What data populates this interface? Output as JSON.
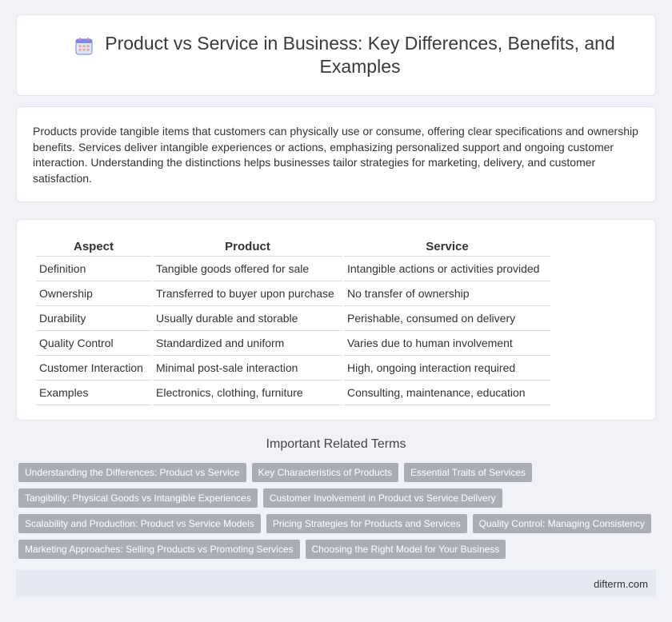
{
  "header": {
    "title": "Product vs Service in Business: Key Differences, Benefits, and Examples",
    "icon": "calendar-icon"
  },
  "intro": {
    "text": "Products provide tangible items that customers can physically use or consume, offering clear specifications and ownership benefits. Services deliver intangible experiences or actions, emphasizing personalized support and ongoing customer interaction. Understanding the distinctions helps businesses tailor strategies for marketing, delivery, and customer satisfaction."
  },
  "table": {
    "headers": [
      "Aspect",
      "Product",
      "Service"
    ],
    "rows": [
      [
        "Definition",
        "Tangible goods offered for sale",
        "Intangible actions or activities provided"
      ],
      [
        "Ownership",
        "Transferred to buyer upon purchase",
        "No transfer of ownership"
      ],
      [
        "Durability",
        "Usually durable and storable",
        "Perishable, consumed on delivery"
      ],
      [
        "Quality Control",
        "Standardized and uniform",
        "Varies due to human involvement"
      ],
      [
        "Customer Interaction",
        "Minimal post-sale interaction",
        "High, ongoing interaction required"
      ],
      [
        "Examples",
        "Electronics, clothing, furniture",
        "Consulting, maintenance, education"
      ]
    ]
  },
  "related": {
    "title": "Important Related Terms",
    "rows": [
      [
        "Understanding the Differences: Product vs Service",
        "Key Characteristics of Products",
        "Essential Traits of Services"
      ],
      [
        "Tangibility: Physical Goods vs Intangible Experiences",
        "Customer Involvement in Product vs Service Delivery"
      ],
      [
        "Scalability and Production: Product vs Service Models",
        "Pricing Strategies for Products and Services",
        "Quality Control: Managing Consistency"
      ],
      [
        "Marketing Approaches: Selling Products vs Promoting Services",
        "Choosing the Right Model for Your Business"
      ]
    ]
  },
  "footer": {
    "site": "difterm.com"
  },
  "colors": {
    "background": "#f0f2f7",
    "tag": "#a9adb6",
    "footer": "#e4e9f3"
  }
}
